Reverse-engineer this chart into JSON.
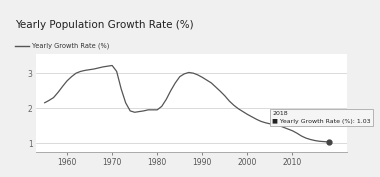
{
  "title": "Yearly Population Growth Rate (%)",
  "title_bg": "#e8e8e8",
  "legend_label": "Yearly Growth Rate (%)",
  "tooltip_year": "2018",
  "tooltip_label": "Yearly Growth Rate (%): 1.03",
  "line_color": "#555555",
  "marker_color": "#444444",
  "tooltip_box_color": "#f5f5f5",
  "tooltip_border": "#aaaaaa",
  "bg_color": "#f0f0f0",
  "plot_bg": "#ffffff",
  "ylabel_ticks": [
    1,
    2,
    3
  ],
  "xlim": [
    1953,
    2022
  ],
  "ylim": [
    0.75,
    3.55
  ],
  "xticks": [
    1960,
    1970,
    1980,
    1990,
    2000,
    2010
  ],
  "years": [
    1955,
    1956,
    1957,
    1958,
    1959,
    1960,
    1961,
    1962,
    1963,
    1964,
    1965,
    1966,
    1967,
    1968,
    1969,
    1970,
    1971,
    1972,
    1973,
    1974,
    1975,
    1976,
    1977,
    1978,
    1979,
    1980,
    1981,
    1982,
    1983,
    1984,
    1985,
    1986,
    1987,
    1988,
    1989,
    1990,
    1991,
    1992,
    1993,
    1994,
    1995,
    1996,
    1997,
    1998,
    1999,
    2000,
    2001,
    2002,
    2003,
    2004,
    2005,
    2006,
    2007,
    2008,
    2009,
    2010,
    2011,
    2012,
    2013,
    2014,
    2015,
    2016,
    2017,
    2018
  ],
  "values": [
    2.15,
    2.22,
    2.3,
    2.45,
    2.62,
    2.78,
    2.9,
    3.0,
    3.05,
    3.08,
    3.1,
    3.12,
    3.15,
    3.18,
    3.2,
    3.22,
    3.05,
    2.55,
    2.15,
    1.92,
    1.88,
    1.9,
    1.92,
    1.95,
    1.95,
    1.95,
    2.05,
    2.25,
    2.5,
    2.72,
    2.9,
    2.98,
    3.02,
    3.0,
    2.95,
    2.88,
    2.8,
    2.72,
    2.6,
    2.48,
    2.35,
    2.2,
    2.08,
    1.98,
    1.9,
    1.82,
    1.75,
    1.68,
    1.62,
    1.58,
    1.55,
    1.52,
    1.5,
    1.45,
    1.4,
    1.35,
    1.28,
    1.2,
    1.14,
    1.1,
    1.07,
    1.05,
    1.04,
    1.03
  ],
  "title_fontsize": 7.5,
  "legend_fontsize": 4.8,
  "tick_fontsize": 5.5,
  "tooltip_fontsize": 4.5
}
